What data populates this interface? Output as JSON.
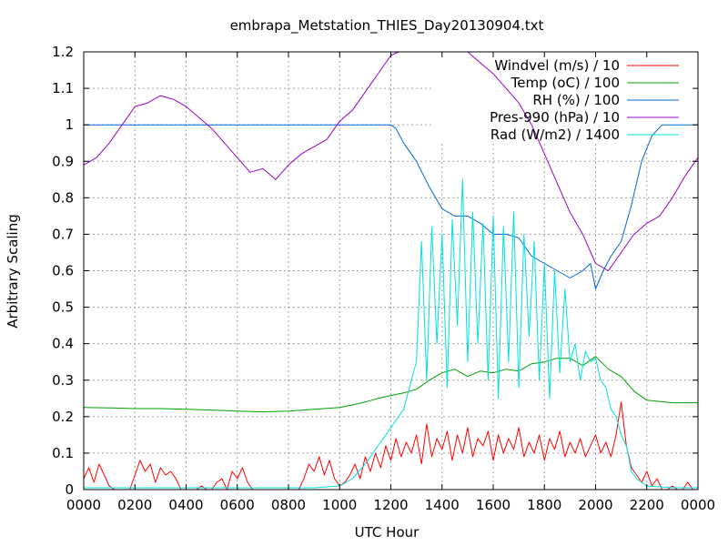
{
  "chart_data": {
    "type": "line",
    "title": "embrapa_Metstation_THIES_Day20130904.txt",
    "xlabel": "UTC Hour",
    "ylabel": "Arbitrary Scaling",
    "xlim": [
      0,
      24
    ],
    "ylim": [
      0,
      1.2
    ],
    "x_ticks": [
      0,
      2,
      4,
      6,
      8,
      10,
      12,
      14,
      16,
      18,
      20,
      22,
      24
    ],
    "x_tick_labels": [
      "0000",
      "0200",
      "0400",
      "0600",
      "0800",
      "1000",
      "1200",
      "1400",
      "1600",
      "1800",
      "2000",
      "2200",
      "0000"
    ],
    "y_ticks": [
      0,
      0.1,
      0.2,
      0.3,
      0.4,
      0.5,
      0.6,
      0.7,
      0.8,
      0.9,
      1,
      1.1,
      1.2
    ],
    "y_tick_labels": [
      "0",
      "0.1",
      "0.2",
      "0.3",
      "0.4",
      "0.5",
      "0.6",
      "0.7",
      "0.8",
      "0.9",
      "1",
      "1.1",
      "1.2"
    ],
    "grid": true,
    "legend_position": "top-right",
    "series": [
      {
        "name": "Windvel (m/s) / 10",
        "color": "#ff0000",
        "x": [
          0,
          0.2,
          0.4,
          0.6,
          0.8,
          1,
          1.2,
          1.4,
          1.6,
          1.8,
          2,
          2.2,
          2.4,
          2.6,
          2.8,
          3,
          3.2,
          3.4,
          3.6,
          3.8,
          4,
          4.2,
          4.4,
          4.6,
          4.8,
          5,
          5.2,
          5.4,
          5.6,
          5.8,
          6,
          6.2,
          6.4,
          6.6,
          6.8,
          7,
          7.2,
          7.4,
          7.6,
          7.8,
          8,
          8.2,
          8.4,
          8.6,
          8.8,
          9,
          9.2,
          9.4,
          9.6,
          9.8,
          10,
          10.2,
          10.4,
          10.6,
          10.8,
          11,
          11.2,
          11.4,
          11.6,
          11.8,
          12,
          12.2,
          12.4,
          12.6,
          12.8,
          13,
          13.2,
          13.4,
          13.6,
          13.8,
          14,
          14.2,
          14.4,
          14.6,
          14.8,
          15,
          15.2,
          15.4,
          15.6,
          15.8,
          16,
          16.2,
          16.4,
          16.6,
          16.8,
          17,
          17.2,
          17.4,
          17.6,
          17.8,
          18,
          18.2,
          18.4,
          18.6,
          18.8,
          19,
          19.2,
          19.4,
          19.6,
          19.8,
          20,
          20.2,
          20.4,
          20.6,
          20.8,
          21,
          21.2,
          21.4,
          21.6,
          21.8,
          22,
          22.2,
          22.4,
          22.6,
          22.8,
          23,
          23.2,
          23.4,
          23.6,
          23.8,
          24
        ],
        "values": [
          0.03,
          0.06,
          0.02,
          0.07,
          0.04,
          0.01,
          0.0,
          0.0,
          0.0,
          0.0,
          0.04,
          0.08,
          0.05,
          0.07,
          0.02,
          0.06,
          0.04,
          0.05,
          0.03,
          0.0,
          0.0,
          0.0,
          0.0,
          0.01,
          0.0,
          0.0,
          0.02,
          0.03,
          0.0,
          0.05,
          0.03,
          0.06,
          0.02,
          0.0,
          0.0,
          0.0,
          0.0,
          0.0,
          0.0,
          0.0,
          0.0,
          0.0,
          0.0,
          0.03,
          0.07,
          0.05,
          0.09,
          0.04,
          0.08,
          0.03,
          0.01,
          0.02,
          0.04,
          0.07,
          0.03,
          0.09,
          0.05,
          0.1,
          0.06,
          0.12,
          0.08,
          0.14,
          0.09,
          0.13,
          0.1,
          0.15,
          0.07,
          0.18,
          0.09,
          0.14,
          0.11,
          0.16,
          0.08,
          0.15,
          0.1,
          0.17,
          0.09,
          0.14,
          0.12,
          0.16,
          0.08,
          0.15,
          0.1,
          0.14,
          0.11,
          0.17,
          0.09,
          0.13,
          0.1,
          0.15,
          0.08,
          0.14,
          0.11,
          0.16,
          0.09,
          0.13,
          0.1,
          0.14,
          0.09,
          0.12,
          0.15,
          0.1,
          0.13,
          0.09,
          0.15,
          0.24,
          0.12,
          0.06,
          0.04,
          0.02,
          0.05,
          0.01,
          0.03,
          0.0,
          0.0,
          0.01,
          0.0,
          0.0,
          0.02,
          0.0,
          0.0
        ]
      },
      {
        "name": "Temp (oC) / 100",
        "color": "#00a000",
        "x": [
          0,
          1,
          2,
          3,
          4,
          5,
          6,
          7,
          8,
          9,
          10,
          10.5,
          11,
          11.5,
          12,
          12.5,
          13,
          13.5,
          14,
          14.5,
          15,
          15.5,
          16,
          16.5,
          17,
          17.5,
          18,
          18.5,
          19,
          19.5,
          20,
          20.5,
          21,
          21.5,
          22,
          23,
          24
        ],
        "values": [
          0.225,
          0.224,
          0.222,
          0.222,
          0.22,
          0.218,
          0.215,
          0.213,
          0.215,
          0.22,
          0.225,
          0.232,
          0.24,
          0.25,
          0.258,
          0.265,
          0.275,
          0.3,
          0.32,
          0.33,
          0.31,
          0.325,
          0.32,
          0.33,
          0.325,
          0.345,
          0.35,
          0.36,
          0.36,
          0.34,
          0.365,
          0.33,
          0.31,
          0.27,
          0.245,
          0.238,
          0.238
        ]
      },
      {
        "name": "RH (%) / 100",
        "color": "#0066dd",
        "x": [
          0,
          2,
          4,
          6,
          8,
          10,
          11,
          12,
          12.2,
          12.5,
          13,
          13.5,
          14,
          14.5,
          15,
          15.5,
          16,
          16.5,
          17,
          17.5,
          18,
          18.5,
          19,
          19.5,
          19.8,
          20,
          20.3,
          20.6,
          21,
          21.4,
          21.8,
          22.2,
          22.6,
          23,
          24
        ],
        "values": [
          1.0,
          1.0,
          1.0,
          1.0,
          1.0,
          1.0,
          1.0,
          1.0,
          0.99,
          0.95,
          0.9,
          0.83,
          0.77,
          0.75,
          0.75,
          0.73,
          0.7,
          0.7,
          0.69,
          0.64,
          0.62,
          0.6,
          0.58,
          0.6,
          0.62,
          0.55,
          0.6,
          0.64,
          0.68,
          0.78,
          0.9,
          0.97,
          1.0,
          1.0,
          1.0
        ]
      },
      {
        "name": "Pres-990 (hPa) / 10",
        "color": "#9900cc",
        "x": [
          0,
          0.5,
          1,
          1.5,
          2,
          2.5,
          3,
          3.5,
          4,
          4.5,
          5,
          5.5,
          6,
          6.5,
          7,
          7.5,
          8,
          8.5,
          9,
          9.5,
          10,
          10.5,
          11,
          11.5,
          12,
          12.3,
          15,
          15.5,
          16,
          16.5,
          17,
          17.5,
          18,
          18.5,
          19,
          19.5,
          20,
          20.5,
          21,
          21.5,
          22,
          22.5,
          23,
          23.5,
          24
        ],
        "values": [
          0.89,
          0.91,
          0.95,
          1.0,
          1.05,
          1.06,
          1.08,
          1.07,
          1.05,
          1.02,
          0.99,
          0.95,
          0.91,
          0.87,
          0.88,
          0.85,
          0.89,
          0.92,
          0.94,
          0.96,
          1.01,
          1.04,
          1.09,
          1.14,
          1.19,
          1.2,
          1.2,
          1.17,
          1.14,
          1.1,
          1.06,
          1.0,
          0.92,
          0.84,
          0.76,
          0.7,
          0.62,
          0.6,
          0.65,
          0.7,
          0.73,
          0.75,
          0.8,
          0.86,
          0.91
        ]
      },
      {
        "name": "Rad (W/m2) / 1400",
        "color": "#00e0e0",
        "x": [
          0,
          2,
          4,
          6,
          8,
          9,
          10,
          10.5,
          11,
          11.5,
          12,
          12.5,
          12.8,
          13,
          13.2,
          13.4,
          13.6,
          13.8,
          14,
          14.2,
          14.4,
          14.6,
          14.8,
          15,
          15.2,
          15.4,
          15.6,
          15.8,
          16,
          16.2,
          16.4,
          16.6,
          16.8,
          17,
          17.2,
          17.4,
          17.6,
          17.8,
          18,
          18.2,
          18.4,
          18.6,
          18.8,
          19,
          19.2,
          19.4,
          19.6,
          19.8,
          20,
          20.2,
          20.4,
          20.6,
          20.8,
          21,
          21.2,
          21.4,
          21.6,
          22,
          23,
          24
        ],
        "values": [
          0.005,
          0.005,
          0.005,
          0.005,
          0.005,
          0.005,
          0.01,
          0.03,
          0.07,
          0.12,
          0.17,
          0.22,
          0.3,
          0.35,
          0.68,
          0.3,
          0.72,
          0.4,
          0.7,
          0.28,
          0.74,
          0.45,
          0.85,
          0.35,
          0.76,
          0.4,
          0.73,
          0.3,
          0.75,
          0.25,
          0.72,
          0.35,
          0.76,
          0.28,
          0.7,
          0.42,
          0.68,
          0.3,
          0.62,
          0.25,
          0.6,
          0.32,
          0.55,
          0.35,
          0.4,
          0.3,
          0.38,
          0.35,
          0.36,
          0.3,
          0.28,
          0.22,
          0.2,
          0.15,
          0.12,
          0.05,
          0.03,
          0.01,
          0.005,
          0.005
        ]
      }
    ]
  }
}
